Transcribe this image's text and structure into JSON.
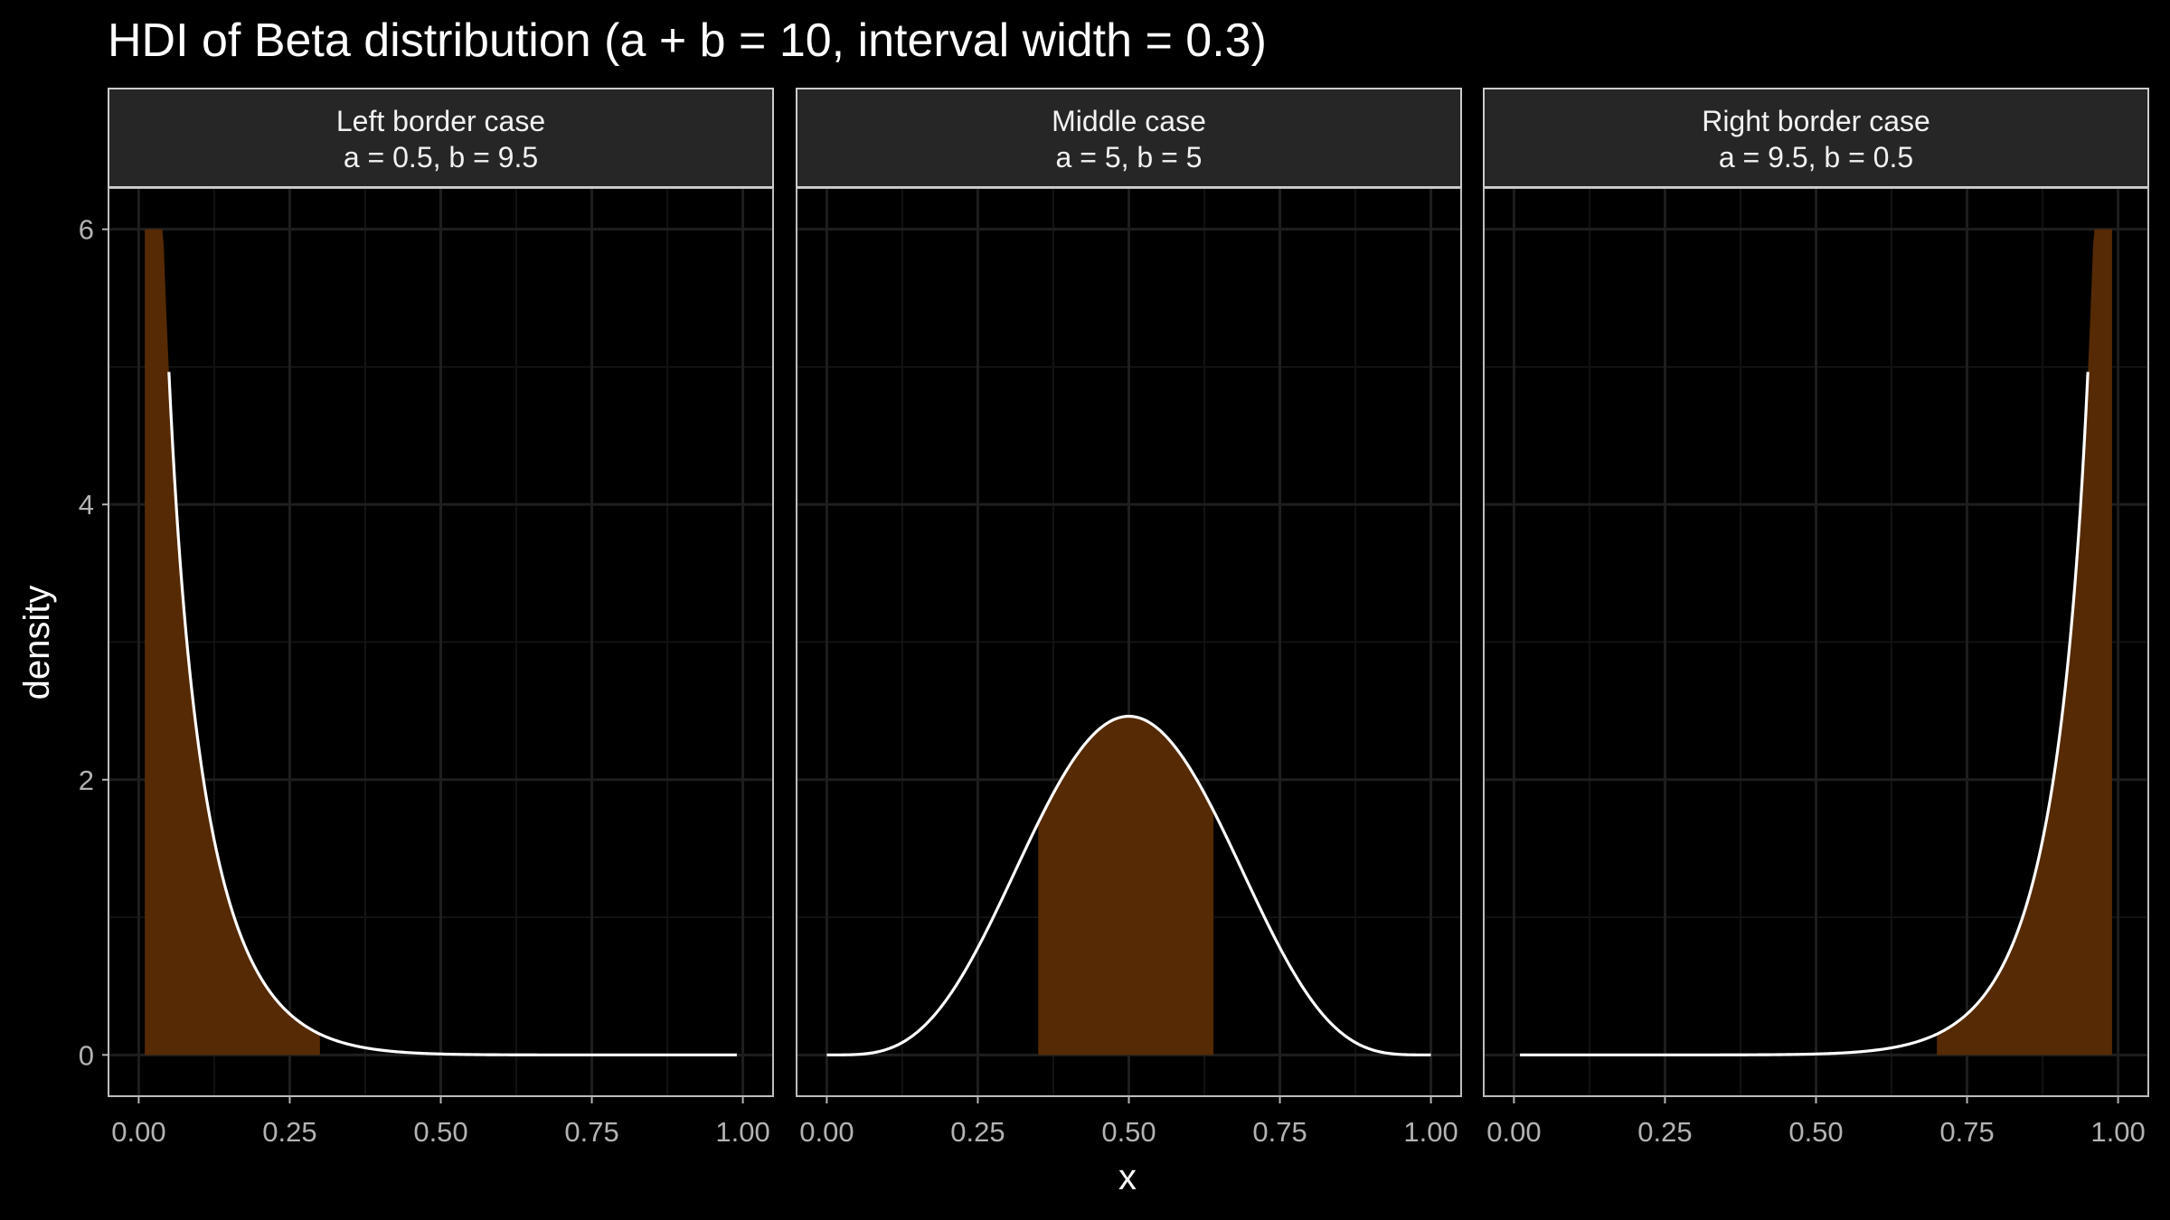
{
  "chart_data": {
    "type": "area",
    "title": "HDI of Beta distribution (a + b = 10, interval width = 0.3)",
    "xlabel": "x",
    "ylabel": "density",
    "xlim": [
      0,
      1
    ],
    "ylim": [
      -0.3,
      6.3
    ],
    "x_ticks": [
      0,
      0.25,
      0.5,
      0.75,
      1
    ],
    "x_tick_labels": [
      "0.00",
      "0.25",
      "0.50",
      "0.75",
      "1.00"
    ],
    "y_ticks": [
      0,
      2,
      4,
      6
    ],
    "y_tick_labels": [
      "0",
      "2",
      "4",
      "6"
    ],
    "density_cap": 6,
    "colors": {
      "background": "#000000",
      "grid_major": "#1e1e1e",
      "grid_minor": "#121212",
      "strip_fill": "#262626",
      "strip_border": "#cccccc",
      "panel_border": "#bdbdbd",
      "curve": "#ffffff",
      "hdi_fill": "#552a04"
    },
    "panels": [
      {
        "strip_line1": "Left border case",
        "strip_line2": "a = 0.5, b = 9.5",
        "a": 0.5,
        "b": 9.5,
        "curve_range": [
          0.05,
          0.99
        ],
        "hdi": [
          0.01,
          0.3
        ]
      },
      {
        "strip_line1": "Middle case",
        "strip_line2": "a = 5, b = 5",
        "a": 5,
        "b": 5,
        "curve_range": [
          0.0,
          1.0
        ],
        "hdi": [
          0.35,
          0.64
        ]
      },
      {
        "strip_line1": "Right border case",
        "strip_line2": "a = 9.5, b = 0.5",
        "a": 9.5,
        "b": 0.5,
        "curve_range": [
          0.01,
          0.95
        ],
        "hdi": [
          0.7,
          0.99
        ]
      }
    ]
  }
}
